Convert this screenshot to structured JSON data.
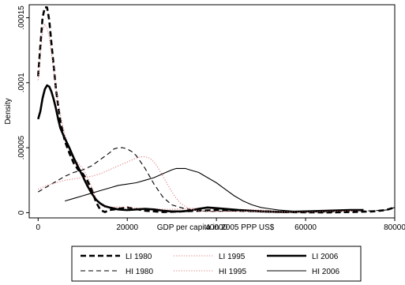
{
  "chart_data": {
    "type": "line",
    "title": "",
    "xlabel": "GDP per capita in 2005 PPP US$",
    "ylabel": "Density",
    "xlim": [
      -2000,
      80000
    ],
    "ylim": [
      -4e-06,
      0.00016
    ],
    "xticks": [
      0,
      20000,
      40000,
      60000,
      80000
    ],
    "xtick_labels": [
      "0",
      "20000",
      "40000",
      "60000",
      "80000"
    ],
    "yticks": [
      0,
      5e-05,
      0.0001,
      0.00015
    ],
    "ytick_labels": [
      "0",
      ".00005",
      ".0001",
      ".00015"
    ],
    "grid": false,
    "legend_position": "bottom",
    "series": [
      {
        "name": "LI 1980",
        "color": "#000000",
        "dash": "dashed",
        "weight": "thick",
        "x": [
          0,
          500,
          1000,
          1500,
          2000,
          2500,
          3000,
          3500,
          4000,
          5000,
          6000,
          7000,
          8000,
          9000,
          10000,
          11000,
          12000,
          13000,
          14000,
          15000,
          16000,
          18000,
          20000,
          24000,
          28000,
          32000,
          36000,
          40000,
          45000,
          50000,
          55000,
          60000,
          65000,
          70000,
          75000,
          78000,
          80000
        ],
        "y": [
          0.000105,
          0.000128,
          0.00015,
          0.000158,
          0.000158,
          0.000148,
          0.00013,
          0.000112,
          9.5e-05,
          7e-05,
          5.5e-05,
          4.6e-05,
          3.8e-05,
          3.3e-05,
          3e-05,
          2.5e-05,
          1.8e-05,
          8e-06,
          2e-06,
          5e-07,
          2e-06,
          3e-06,
          4e-06,
          1.5e-06,
          5e-07,
          1e-06,
          1.5e-06,
          2e-06,
          1.5e-06,
          1e-06,
          5e-07,
          3e-07,
          2e-07,
          5e-07,
          1e-06,
          2e-06,
          4e-06
        ]
      },
      {
        "name": "LI 1995",
        "color": "#e08080",
        "dash": "dotted",
        "weight": "thin",
        "x": [
          0,
          500,
          1000,
          1500,
          2000,
          2500,
          3000,
          3500,
          4000,
          5000,
          6000,
          7000,
          8000,
          9000,
          10000,
          11000,
          12000,
          13000,
          14000,
          15000,
          18000,
          20000,
          25000,
          30000,
          35000,
          40000,
          45000,
          50000,
          55000,
          60000,
          65000,
          70000,
          73000
        ],
        "y": [
          0.000102,
          0.00012,
          0.00014,
          0.000145,
          0.000142,
          0.000135,
          0.000122,
          0.00011,
          9.5e-05,
          7.5e-05,
          6e-05,
          5e-05,
          4.2e-05,
          3.8e-05,
          3.4e-05,
          2.8e-05,
          2e-05,
          1.1e-05,
          6e-06,
          4e-06,
          4.5e-06,
          4e-06,
          3e-06,
          2.5e-06,
          3.5e-06,
          3e-06,
          2.5e-06,
          2e-06,
          1e-06,
          5e-07,
          8e-07,
          1.2e-06,
          1.5e-06
        ]
      },
      {
        "name": "LI 2006",
        "color": "#000000",
        "dash": "solid",
        "weight": "thick",
        "x": [
          0,
          500,
          1000,
          1500,
          2000,
          2500,
          3000,
          3500,
          4000,
          4500,
          5000,
          6000,
          7000,
          8000,
          9000,
          10000,
          11000,
          12000,
          13000,
          14000,
          15000,
          16000,
          18000,
          20000,
          22000,
          24000,
          26000,
          28000,
          30000,
          32000,
          34000,
          36000,
          38000,
          40000,
          45000,
          50000,
          55000,
          60000,
          65000,
          70000,
          73000
        ],
        "y": [
          7.2e-05,
          7.8e-05,
          8.8e-05,
          9.5e-05,
          9.8e-05,
          9.7e-05,
          9.3e-05,
          8.7e-05,
          8e-05,
          7.2e-05,
          6.5e-05,
          5.7e-05,
          5e-05,
          4.2e-05,
          3.5e-05,
          2.8e-05,
          2.1e-05,
          1.5e-05,
          1e-05,
          7e-06,
          5e-06,
          4e-06,
          2.5e-06,
          2e-06,
          2.5e-06,
          3e-06,
          2.5e-06,
          1.5e-06,
          1e-06,
          1e-06,
          1.5e-06,
          3e-06,
          4e-06,
          3.5e-06,
          2e-06,
          1e-06,
          5e-07,
          1e-06,
          1.5e-06,
          2e-06,
          2e-06
        ]
      },
      {
        "name": "HI 1980",
        "color": "#000000",
        "dash": "dashed",
        "weight": "thin",
        "x": [
          0,
          2000,
          4000,
          6000,
          8000,
          10000,
          12000,
          14000,
          16000,
          17000,
          18000,
          19000,
          20000,
          21000,
          22000,
          23000,
          24000,
          25000,
          26000,
          27000,
          28000,
          29000,
          30000,
          31000,
          32000,
          33000,
          34000,
          35000,
          36000,
          38000,
          40000,
          45000,
          50000,
          55000,
          60000,
          65000,
          70000,
          75000,
          78000,
          80000
        ],
        "y": [
          1.6e-05,
          2e-05,
          2.4e-05,
          2.8e-05,
          3.1e-05,
          3.3e-05,
          3.6e-05,
          4.1e-05,
          4.6e-05,
          4.9e-05,
          5e-05,
          5e-05,
          4.9e-05,
          4.7e-05,
          4.4e-05,
          3.9e-05,
          3.4e-05,
          2.8e-05,
          2.2e-05,
          1.7e-05,
          1.2e-05,
          9e-06,
          6e-06,
          5e-06,
          4e-06,
          3e-06,
          2.5e-06,
          2e-06,
          1.5e-06,
          1e-06,
          1e-06,
          1.5e-06,
          1.5e-06,
          1e-06,
          5e-07,
          5e-07,
          1e-06,
          1.5e-06,
          2e-06,
          4e-06
        ]
      },
      {
        "name": "HI 1995",
        "color": "#e08080",
        "dash": "dotted",
        "weight": "thin",
        "x": [
          0,
          2000,
          4000,
          6000,
          8000,
          10000,
          12000,
          14000,
          16000,
          18000,
          20000,
          22000,
          23000,
          24000,
          25000,
          26000,
          27000,
          28000,
          29000,
          30000,
          31000,
          32000,
          33000,
          34000,
          35000,
          36000,
          38000,
          40000,
          45000,
          50000,
          55000,
          60000,
          65000,
          70000,
          73000
        ],
        "y": [
          1.8e-05,
          2.1e-05,
          2.3e-05,
          2.5e-05,
          2.6e-05,
          2.7e-05,
          2.8e-05,
          3e-05,
          3.3e-05,
          3.6e-05,
          3.9e-05,
          4.2e-05,
          4.3e-05,
          4.3e-05,
          4.2e-05,
          3.9e-05,
          3.4e-05,
          2.8e-05,
          2.2e-05,
          1.6e-05,
          1.1e-05,
          7e-06,
          5e-06,
          3e-06,
          2e-06,
          1.5e-06,
          1e-06,
          1e-06,
          1e-06,
          1e-06,
          5e-07,
          5e-07,
          1e-06,
          1.5e-06,
          2e-06
        ]
      },
      {
        "name": "HI 2006",
        "color": "#000000",
        "dash": "solid",
        "weight": "thin",
        "x": [
          6000,
          8000,
          10000,
          12000,
          14000,
          16000,
          18000,
          20000,
          22000,
          24000,
          26000,
          28000,
          30000,
          31000,
          32000,
          33000,
          34000,
          36000,
          38000,
          40000,
          42000,
          44000,
          46000,
          48000,
          50000,
          52000,
          54000,
          56000,
          58000,
          60000,
          65000,
          70000,
          73000
        ],
        "y": [
          9e-06,
          1.1e-05,
          1.3e-05,
          1.5e-05,
          1.7e-05,
          1.9e-05,
          2.1e-05,
          2.2e-05,
          2.3e-05,
          2.5e-05,
          2.7e-05,
          3e-05,
          3.3e-05,
          3.4e-05,
          3.4e-05,
          3.4e-05,
          3.3e-05,
          3.1e-05,
          2.7e-05,
          2.3e-05,
          1.8e-05,
          1.3e-05,
          9e-06,
          6e-06,
          4e-06,
          3e-06,
          2e-06,
          1.5e-06,
          1e-06,
          1e-06,
          1.5e-06,
          2e-06,
          2e-06
        ]
      }
    ]
  }
}
